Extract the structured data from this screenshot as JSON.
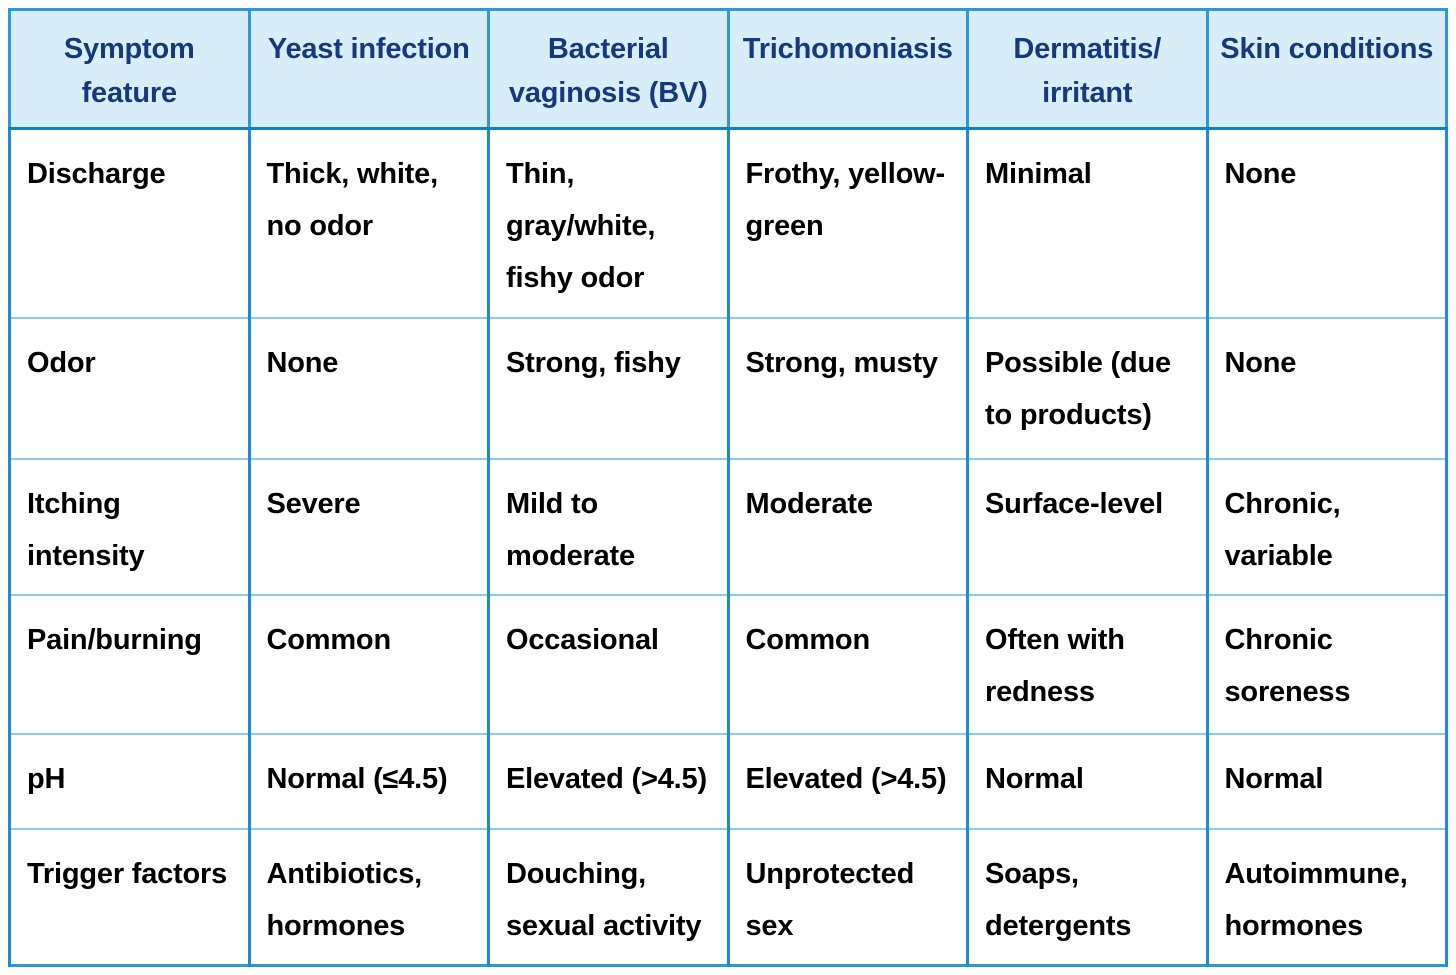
{
  "colors": {
    "header_bg": "#d9edf8",
    "header_text": "#16387c",
    "body_text": "#000000",
    "border_vertical": "#1e8ccd",
    "border_row_divider": "#8ec9ec",
    "border_header_bottom": "#0d83c8",
    "border_outer": "#2f97d7"
  },
  "table": {
    "columns": [
      "Symptom feature",
      "Yeast infection",
      "Bacterial vaginosis (BV)",
      "Trichomoniasis",
      "Dermatitis/ irritant",
      "Skin conditions"
    ],
    "rows": [
      {
        "feature": "Discharge",
        "cells": [
          "Thick, white, no odor",
          "Thin, gray/white, fishy odor",
          "Frothy, yellow-green",
          "Minimal",
          "None"
        ]
      },
      {
        "feature": "Odor",
        "cells": [
          "None",
          "Strong, fishy",
          "Strong, musty",
          "Possible (due to products)",
          "None"
        ]
      },
      {
        "feature": "Itching intensity",
        "cells": [
          "Severe",
          "Mild to moderate",
          "Moderate",
          "Surface-level",
          "Chronic, variable"
        ]
      },
      {
        "feature": "Pain/burning",
        "cells": [
          "Common",
          "Occasional",
          "Common",
          "Often with redness",
          "Chronic soreness"
        ]
      },
      {
        "feature": "pH",
        "cells": [
          "Normal (≤4.5)",
          "Elevated (>4.5)",
          "Elevated (>4.5)",
          "Normal",
          "Normal"
        ]
      },
      {
        "feature": "Trigger factors",
        "cells": [
          "Antibiotics, hormones",
          "Douching, sexual activity",
          "Unprotected sex",
          "Soaps, detergents",
          "Autoimmune, hormones"
        ]
      }
    ]
  }
}
